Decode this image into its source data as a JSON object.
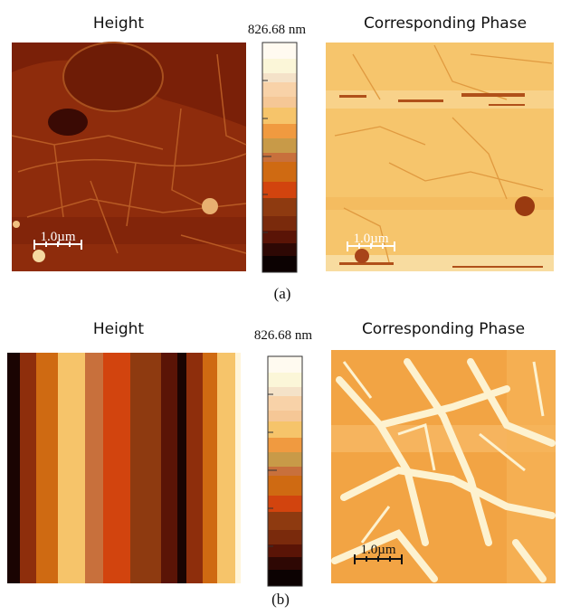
{
  "panels": [
    {
      "height_title": "Height",
      "colorbar_label": "826.68 nm",
      "phase_title": "Corresponding Phase",
      "height_scale_bar": "1.0µm",
      "phase_scale_bar": "1.0µm",
      "caption": "(a)"
    },
    {
      "height_title": "Height",
      "colorbar_label": "826.68 nm",
      "phase_title": "Corresponding Phase",
      "phase_scale_bar": "1.0µm",
      "caption": "(b)"
    }
  ]
}
